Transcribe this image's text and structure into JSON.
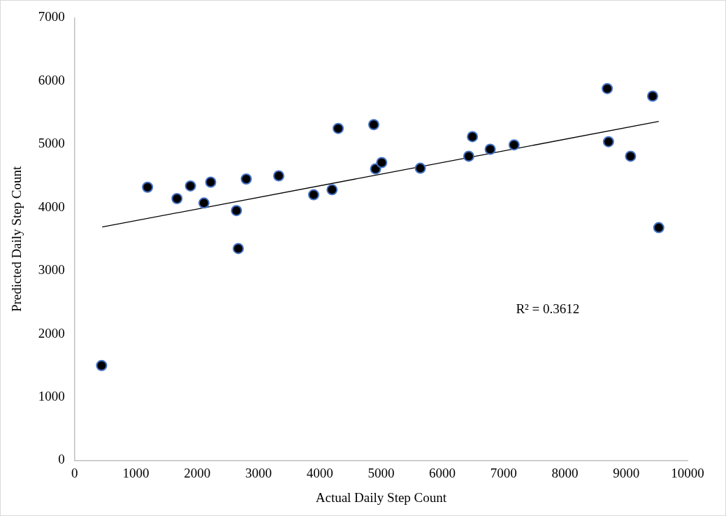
{
  "chart_data": {
    "type": "scatter",
    "xlabel": "Actual Daily Step Count",
    "ylabel": "Predicted Daily Step Count",
    "xlim": [
      0,
      10000
    ],
    "xticks": [
      0,
      1000,
      2000,
      3000,
      4000,
      5000,
      6000,
      7000,
      8000,
      9000,
      10000
    ],
    "ylim": [
      0,
      7000
    ],
    "yticks": [
      0,
      1000,
      2000,
      3000,
      4000,
      5000,
      6000,
      7000
    ],
    "grid": false,
    "legend": false,
    "marker": "circle",
    "annotations": [
      "R² = 0.3612"
    ],
    "series": [
      {
        "color": "#000000",
        "x": [
          440,
          1190,
          1670,
          1890,
          2220,
          2110,
          2640,
          2670,
          2800,
          3330,
          3900,
          4200,
          4300,
          4880,
          4910,
          5010,
          5640,
          6430,
          6490,
          6780,
          7170,
          8690,
          9430,
          8710,
          9070,
          9530
        ],
        "values": [
          1500,
          4320,
          4140,
          4340,
          4400,
          4070,
          3950,
          3350,
          4450,
          4500,
          4200,
          4280,
          5250,
          5310,
          4610,
          4710,
          4620,
          4810,
          5120,
          4920,
          4990,
          5880,
          5760,
          5040,
          4810,
          3680
        ]
      },
      {
        "type": "line",
        "color": "#000000",
        "marker": "none",
        "x": [
          450,
          9530
        ],
        "values": [
          3690,
          5360
        ]
      }
    ]
  }
}
